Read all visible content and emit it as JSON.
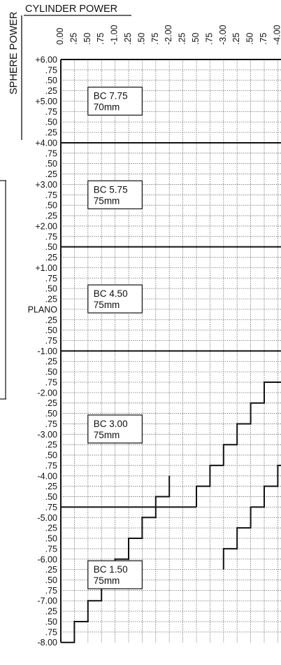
{
  "titles": {
    "cylinder_power": "CYLINDER POWER",
    "sphere_power": "SPHERE POWER"
  },
  "cylinder_labels": [
    "0.00",
    ".25",
    ".50",
    ".75",
    "-1.00",
    ".25",
    ".50",
    ".75",
    "-2.00",
    ".25",
    ".50",
    ".75",
    "-3.00",
    ".25",
    ".50",
    ".75",
    "-4.00"
  ],
  "sphere_labels": [
    "+6.00",
    ".75",
    ".50",
    ".25",
    "+5.00",
    ".75",
    ".50",
    ".25",
    "+4.00",
    ".75",
    ".50",
    ".25",
    "+3.00",
    ".75",
    ".50",
    ".25",
    "+2.00",
    ".75",
    ".50",
    ".25",
    "+1.00",
    ".75",
    ".50",
    ".25",
    "PLANO",
    ".25",
    ".50",
    ".75",
    "-1.00",
    ".25",
    ".50",
    ".75",
    "-2.00",
    ".25",
    ".50",
    ".75",
    "-3.00",
    ".25",
    ".50",
    ".75",
    "-4.00",
    ".25",
    ".50",
    ".75",
    "-5.00",
    ".25",
    ".50",
    ".75",
    "-6.00",
    ".25",
    ".50",
    ".75",
    "-7.00",
    ".25",
    ".50",
    ".75",
    "-8.00"
  ],
  "zones": [
    {
      "base_curve": "BC 7.75",
      "diameter": "70mm",
      "sphere_from": 6.0,
      "sphere_to": 4.0
    },
    {
      "base_curve": "BC 5.75",
      "diameter": "75mm",
      "sphere_from": 4.0,
      "sphere_to": 1.5
    },
    {
      "base_curve": "BC 4.50",
      "diameter": "75mm",
      "sphere_from": 1.5,
      "sphere_to": -1.0
    },
    {
      "base_curve": "BC 3.00",
      "diameter": "75mm",
      "sphere_from": -1.0,
      "sphere_to": -4.75
    },
    {
      "base_curve": "BC 1.50",
      "diameter": "75mm",
      "sphere_from": -4.75,
      "sphere_to": -8.0
    }
  ],
  "colors": {
    "line": "#111111",
    "grid": "#555555",
    "background": "#ffffff"
  }
}
